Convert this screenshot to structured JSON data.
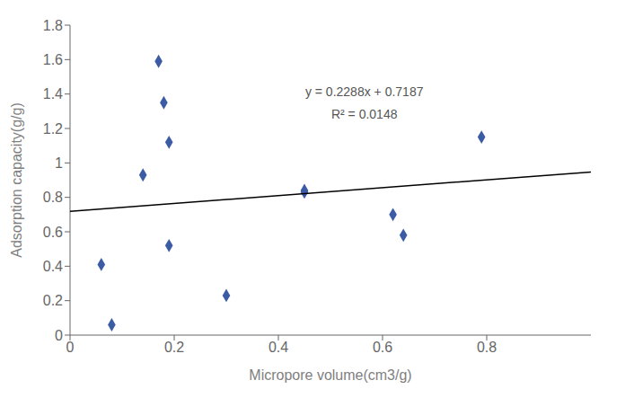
{
  "chart_data": {
    "type": "scatter",
    "xlabel": "Micropore volume(cm3/g)",
    "ylabel": "Adsorption capacity(g/g)",
    "xlim": [
      0,
      1
    ],
    "ylim": [
      0,
      1.8
    ],
    "xticks": [
      0,
      0.2,
      0.4,
      0.6,
      0.8
    ],
    "yticks": [
      0,
      0.2,
      0.4,
      0.6,
      0.8,
      1,
      1.2,
      1.4,
      1.6,
      1.8
    ],
    "grid": false,
    "annotations": [
      "y = 0.2288x + 0.7187",
      "R² = 0.0148"
    ],
    "series": [
      {
        "type": "scatter",
        "color": "#3B5BA5",
        "marker": "diamond",
        "x": [
          0.06,
          0.08,
          0.14,
          0.17,
          0.18,
          0.19,
          0.19,
          0.3,
          0.45,
          0.45,
          0.62,
          0.64,
          0.79
        ],
        "values": [
          0.41,
          0.06,
          0.93,
          1.59,
          1.35,
          0.52,
          1.12,
          0.23,
          0.84,
          0.83,
          0.7,
          0.58,
          1.15
        ]
      },
      {
        "type": "line",
        "color": "#000000",
        "x": [
          0,
          1
        ],
        "values": [
          0.7187,
          0.9475
        ]
      }
    ]
  }
}
